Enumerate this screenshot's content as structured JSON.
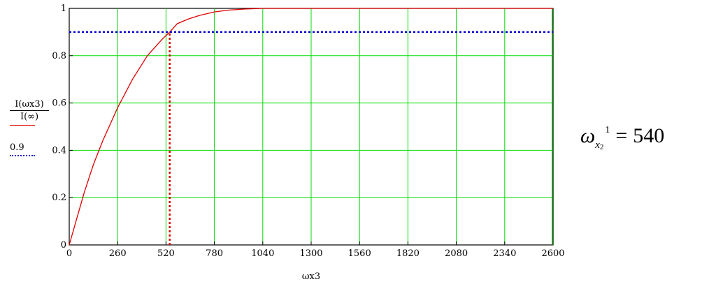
{
  "chart_data": {
    "type": "line",
    "xlabel": "ωx3",
    "ylabel_numerator": "I(ωx3)",
    "ylabel_denominator": "I(∞)",
    "xlim": [
      0,
      2600
    ],
    "ylim": [
      0,
      1
    ],
    "x_ticks": [
      "0",
      "260",
      "520",
      "780",
      "1040",
      "1300",
      "1560",
      "1820",
      "2080",
      "2340",
      "2600"
    ],
    "y_ticks": [
      "0",
      "0.2",
      "0.4",
      "0.6",
      "0.8",
      "1"
    ],
    "grid": true,
    "series": [
      {
        "name": "I(ωx3)/I(∞)",
        "color": "#e00000",
        "style": "solid",
        "x": [
          0,
          40,
          80,
          130,
          180,
          260,
          340,
          420,
          500,
          540,
          580,
          640,
          700,
          780,
          860,
          940,
          1040,
          1300,
          1560,
          1820,
          2080,
          2340,
          2600
        ],
        "y": [
          0,
          0.11,
          0.22,
          0.34,
          0.44,
          0.58,
          0.7,
          0.8,
          0.87,
          0.9,
          0.935,
          0.955,
          0.97,
          0.985,
          0.993,
          0.997,
          1.0,
          1.0,
          1.0,
          1.0,
          1.0,
          1.0,
          1.0
        ]
      },
      {
        "name": "0.9",
        "color": "#0000cc",
        "style": "dotted",
        "x": [
          0,
          2600
        ],
        "y": [
          0.9,
          0.9
        ]
      }
    ],
    "markers": [
      {
        "type": "vertical",
        "x": 540,
        "y_from": 0,
        "y_to": 0.9,
        "color": "#e00000",
        "style": "dotted"
      }
    ]
  },
  "legend": {
    "numerator": "I(ωx3)",
    "denominator": "I(∞)",
    "second": "0.9"
  },
  "result": {
    "symbol": "ω",
    "sub": "x",
    "subsub": "2",
    "sup": "1",
    "equals": "=",
    "value": "540"
  }
}
